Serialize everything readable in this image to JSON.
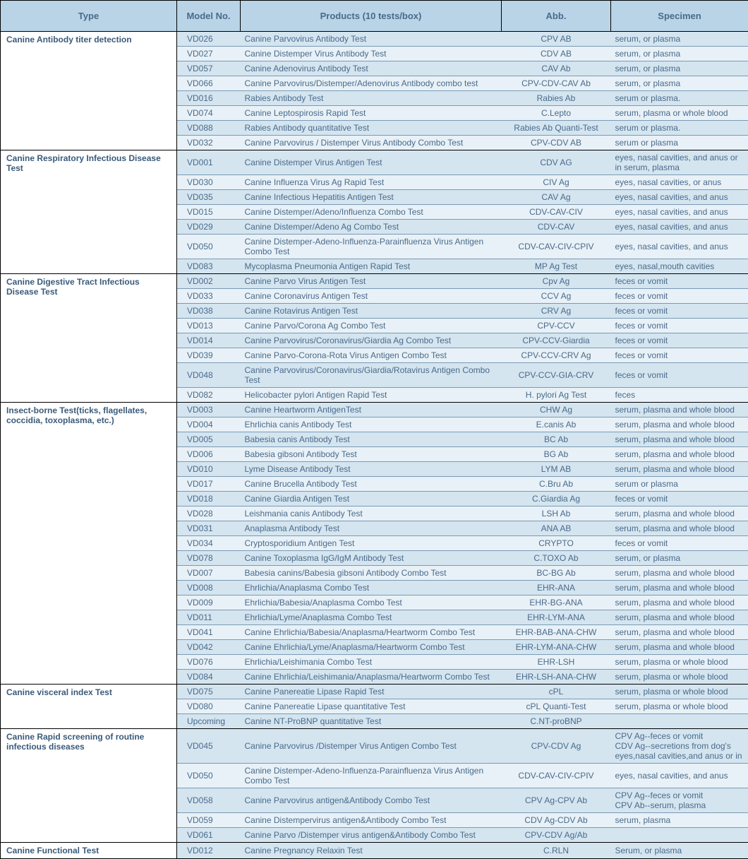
{
  "headers": {
    "type": "Type",
    "model": "Model No.",
    "product": "Products (10 tests/box)",
    "abb": "Abb.",
    "specimen": "Specimen"
  },
  "colors": {
    "header_bg": "#b8d4e6",
    "row_alt": "#d4e5f0",
    "row_light": "#e8f1f7",
    "text": "#4a6a8a",
    "border_outer": "#000000",
    "border_inner": "#7a9ab5"
  },
  "groups": [
    {
      "type": "Canine Antibody titer detection",
      "rows": [
        {
          "model": "VD026",
          "product": "Canine Parvovirus Antibody Test",
          "abb": "CPV AB",
          "spec": "serum, or plasma"
        },
        {
          "model": "VD027",
          "product": "Canine Distemper Virus Antibody Test",
          "abb": "CDV AB",
          "spec": "serum, or plasma"
        },
        {
          "model": "VD057",
          "product": "Canine Adenovirus Antibody Test",
          "abb": "CAV Ab",
          "spec": "serum, or plasma"
        },
        {
          "model": "VD066",
          "product": "Canine Parvovirus/Distemper/Adenovirus Antibody combo test",
          "abb": "CPV-CDV-CAV Ab",
          "spec": "serum, or plasma"
        },
        {
          "model": "VD016",
          "product": "Rabies Antibody Test",
          "abb": "Rabies Ab",
          "spec": "serum or plasma."
        },
        {
          "model": "VD074",
          "product": "Canine Leptospirosis Rapid Test",
          "abb": "C.Lepto",
          "spec": "serum, plasma or whole blood"
        },
        {
          "model": "VD088",
          "product": "Rabies Antibody quantitative Test",
          "abb": "Rabies Ab Quanti-Test",
          "spec": "serum or plasma."
        },
        {
          "model": "VD032",
          "product": "Canine Parvovirus / Distemper Virus Antibody Combo Test",
          "abb": "CPV-CDV AB",
          "spec": "serum or plasma"
        }
      ]
    },
    {
      "type": "Canine Respiratory Infectious Disease Test",
      "rows": [
        {
          "model": "VD001",
          "product": "Canine Distemper Virus Antigen Test",
          "abb": "CDV AG",
          "spec": "eyes, nasal cavities, and anus or in serum, plasma"
        },
        {
          "model": "VD030",
          "product": "Canine Influenza Virus Ag Rapid Test",
          "abb": "CIV Ag",
          "spec": "eyes, nasal cavities, or anus"
        },
        {
          "model": "VD035",
          "product": "Canine Infectious Hepatitis Antigen Test",
          "abb": "CAV Ag",
          "spec": "eyes, nasal cavities, and anus"
        },
        {
          "model": "VD015",
          "product": "Canine Distemper/Adeno/Influenza Combo Test",
          "abb": "CDV-CAV-CIV",
          "spec": "eyes, nasal cavities, and anus"
        },
        {
          "model": "VD029",
          "product": "Canine Distemper/Adeno Ag Combo Test",
          "abb": "CDV-CAV",
          "spec": "eyes, nasal cavities, and anus"
        },
        {
          "model": "VD050",
          "product": "Canine Distemper-Adeno-Influenza-Parainfluenza Virus Antigen Combo Test",
          "abb": "CDV-CAV-CIV-CPIV",
          "spec": "eyes, nasal cavities, and anus"
        },
        {
          "model": "VD083",
          "product": "Mycoplasma Pneumonia Antigen Rapid Test",
          "abb": "MP Ag Test",
          "spec": "eyes, nasal,mouth cavities"
        }
      ]
    },
    {
      "type": "Canine Digestive Tract Infectious Disease Test",
      "rows": [
        {
          "model": "VD002",
          "product": "Canine Parvo Virus Antigen Test",
          "abb": "Cpv Ag",
          "spec": "feces or vomit"
        },
        {
          "model": "VD033",
          "product": "Canine Coronavirus Antigen Test",
          "abb": "CCV Ag",
          "spec": "feces or vomit"
        },
        {
          "model": "VD038",
          "product": "Canine Rotavirus Antigen Test",
          "abb": "CRV Ag",
          "spec": "feces or vomit"
        },
        {
          "model": "VD013",
          "product": "Canine Parvo/Corona Ag Combo Test",
          "abb": "CPV-CCV",
          "spec": "feces or vomit"
        },
        {
          "model": "VD014",
          "product": "Canine Parvovirus/Coronavirus/Giardia Ag Combo Test",
          "abb": "CPV-CCV-Giardia",
          "spec": "feces or vomit"
        },
        {
          "model": "VD039",
          "product": "Canine Parvo-Corona-Rota Virus Antigen Combo Test",
          "abb": "CPV-CCV-CRV Ag",
          "spec": "feces or vomit"
        },
        {
          "model": "VD048",
          "product": "Canine Parvovirus/Coronavirus/Giardia/Rotavirus Antigen Combo Test",
          "abb": "CPV-CCV-GIA-CRV",
          "spec": "feces or vomit"
        },
        {
          "model": "VD082",
          "product": "Helicobacter pylori Antigen Rapid Test",
          "abb": "H. pylori Ag Test",
          "spec": "feces"
        }
      ]
    },
    {
      "type": "Insect-borne Test(ticks, flagellates, coccidia, toxoplasma, etc.)",
      "rows": [
        {
          "model": "VD003",
          "product": "Canine Heartworm AntigenTest",
          "abb": "CHW Ag",
          "spec": "serum, plasma and whole blood"
        },
        {
          "model": "VD004",
          "product": "Ehrlichia canis Antibody Test",
          "abb": "E.canis Ab",
          "spec": "serum, plasma and whole blood"
        },
        {
          "model": "VD005",
          "product": "Babesia canis Antibody Test",
          "abb": "BC Ab",
          "spec": "serum, plasma and whole blood"
        },
        {
          "model": "VD006",
          "product": "Babesia gibsoni Antibody Test",
          "abb": "BG Ab",
          "spec": "serum, plasma and whole blood"
        },
        {
          "model": "VD010",
          "product": "Lyme Disease Antibody Test",
          "abb": "LYM AB",
          "spec": "serum, plasma and whole blood"
        },
        {
          "model": "VD017",
          "product": "Canine Brucella Antibody Test",
          "abb": "C.Bru Ab",
          "spec": "serum or plasma"
        },
        {
          "model": "VD018",
          "product": "Canine Giardia Antigen Test",
          "abb": "C.Giardia Ag",
          "spec": "feces or vomit"
        },
        {
          "model": "VD028",
          "product": "Leishmania canis Antibody Test",
          "abb": "LSH Ab",
          "spec": "serum, plasma and whole blood"
        },
        {
          "model": "VD031",
          "product": "Anaplasma Antibody Test",
          "abb": "ANA AB",
          "spec": "serum, plasma and whole blood"
        },
        {
          "model": "VD034",
          "product": "Cryptosporidium Antigen Test",
          "abb": "CRYPTO",
          "spec": "feces or vomit"
        },
        {
          "model": "VD078",
          "product": "Canine Toxoplasma IgG/IgM Antibody Test",
          "abb": "C.TOXO Ab",
          "spec": "serum, or plasma"
        },
        {
          "model": "VD007",
          "product": "Babesia canins/Babesia gibsoni Antibody Combo Test",
          "abb": "BC-BG Ab",
          "spec": "serum, plasma and whole blood"
        },
        {
          "model": "VD008",
          "product": "Ehrlichia/Anaplasma Combo Test",
          "abb": "EHR-ANA",
          "spec": "serum, plasma and whole blood"
        },
        {
          "model": "VD009",
          "product": "Ehrlichia/Babesia/Anaplasma Combo Test",
          "abb": "EHR-BG-ANA",
          "spec": "serum, plasma and whole blood"
        },
        {
          "model": "VD011",
          "product": "Ehrlichia/Lyme/Anaplasma Combo Test",
          "abb": "EHR-LYM-ANA",
          "spec": "serum, plasma and whole blood"
        },
        {
          "model": "VD041",
          "product": "Canine Ehrlichia/Babesia/Anaplasma/Heartworm Combo Test",
          "abb": "EHR-BAB-ANA-CHW",
          "spec": "serum, plasma and whole blood"
        },
        {
          "model": "VD042",
          "product": "Canine Ehrlichia/Lyme/Anaplasma/Heartworm Combo Test",
          "abb": "EHR-LYM-ANA-CHW",
          "spec": "serum, plasma and whole blood"
        },
        {
          "model": "VD076",
          "product": "Ehrlichia/Leishimania Combo Test",
          "abb": "EHR-LSH",
          "spec": "serum, plasma or whole blood"
        },
        {
          "model": "VD084",
          "product": "Canine Ehrlichia/Leishimania/Anaplasma/Heartworm Combo Test",
          "abb": "EHR-LSH-ANA-CHW",
          "spec": "serum, plasma or whole blood"
        }
      ]
    },
    {
      "type": "Canine visceral index Test",
      "rows": [
        {
          "model": "VD075",
          "product": "Canine Panereatie Lipase Rapid Test",
          "abb": "cPL",
          "spec": "serum, plasma or whole blood"
        },
        {
          "model": "VD080",
          "product": "Canine Panereatie Lipase quantitative Test",
          "abb": "cPL Quanti-Test",
          "spec": "serum, plasma or whole blood"
        },
        {
          "model": "Upcoming",
          "product": "Canine NT-ProBNP quantitative Test",
          "abb": "C.NT-proBNP",
          "spec": ""
        }
      ]
    },
    {
      "type": "Canine Rapid screening of routine infectious diseases",
      "rows": [
        {
          "model": "VD045",
          "product": "Canine Parvovirus /Distemper Virus Antigen Combo Test",
          "abb": "CPV-CDV Ag",
          "spec": "CPV Ag--feces or vomit\nCDV Ag--secretions from dog's eyes,nasal cavities,and anus or in"
        },
        {
          "model": "VD050",
          "product": "Canine Distemper-Adeno-Influenza-Parainfluenza Virus Antigen Combo Test",
          "abb": "CDV-CAV-CIV-CPIV",
          "spec": "eyes, nasal cavities, and anus"
        },
        {
          "model": "VD058",
          "product": "Canine Parvovirus antigen&Antibody Combo Test",
          "abb": "CPV Ag-CPV Ab",
          "spec": "CPV Ag--feces or vomit\nCPV Ab--serum, plasma"
        },
        {
          "model": "VD059",
          "product": "Canine Distempervirus antigen&Antibody Combo Test",
          "abb": "CDV Ag-CDV Ab",
          "spec": "serum, plasma"
        },
        {
          "model": "VD061",
          "product": "Canine Parvo /Distemper virus antigen&Antibody Combo Test",
          "abb": "CPV-CDV Ag/Ab",
          "spec": ""
        }
      ]
    },
    {
      "type": "Canine Functional Test",
      "rows": [
        {
          "model": "VD012",
          "product": "Canine Pregnancy Relaxin Test",
          "abb": "C.RLN",
          "spec": "Serum, or plasma"
        }
      ]
    }
  ]
}
